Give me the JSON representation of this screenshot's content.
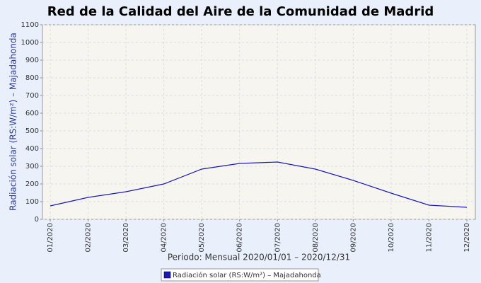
{
  "chart_data": {
    "type": "line",
    "title": "Red de la Calidad del Aire de la Comunidad de Madrid",
    "x_label": "Periodo: Mensual 2020/01/01 – 2020/12/31",
    "y_label": "Radiación solar (RS:W/m²) – Majadahonda",
    "categories": [
      "01/2020",
      "02/2020",
      "03/2020",
      "04/2020",
      "05/2020",
      "06/2020",
      "07/2020",
      "08/2020",
      "09/2020",
      "10/2020",
      "11/2020",
      "12/2020"
    ],
    "series": [
      {
        "name": "Radiación solar (RS:W/m²) – Majadahonda",
        "color": "#1a1ab8",
        "values": [
          76,
          124,
          156,
          200,
          284,
          316,
          324,
          284,
          220,
          148,
          80,
          68
        ]
      }
    ],
    "ylim": [
      0,
      1100
    ],
    "yticks": [
      0,
      100,
      200,
      300,
      400,
      500,
      600,
      700,
      800,
      900,
      1000,
      1100
    ],
    "grid": true
  }
}
